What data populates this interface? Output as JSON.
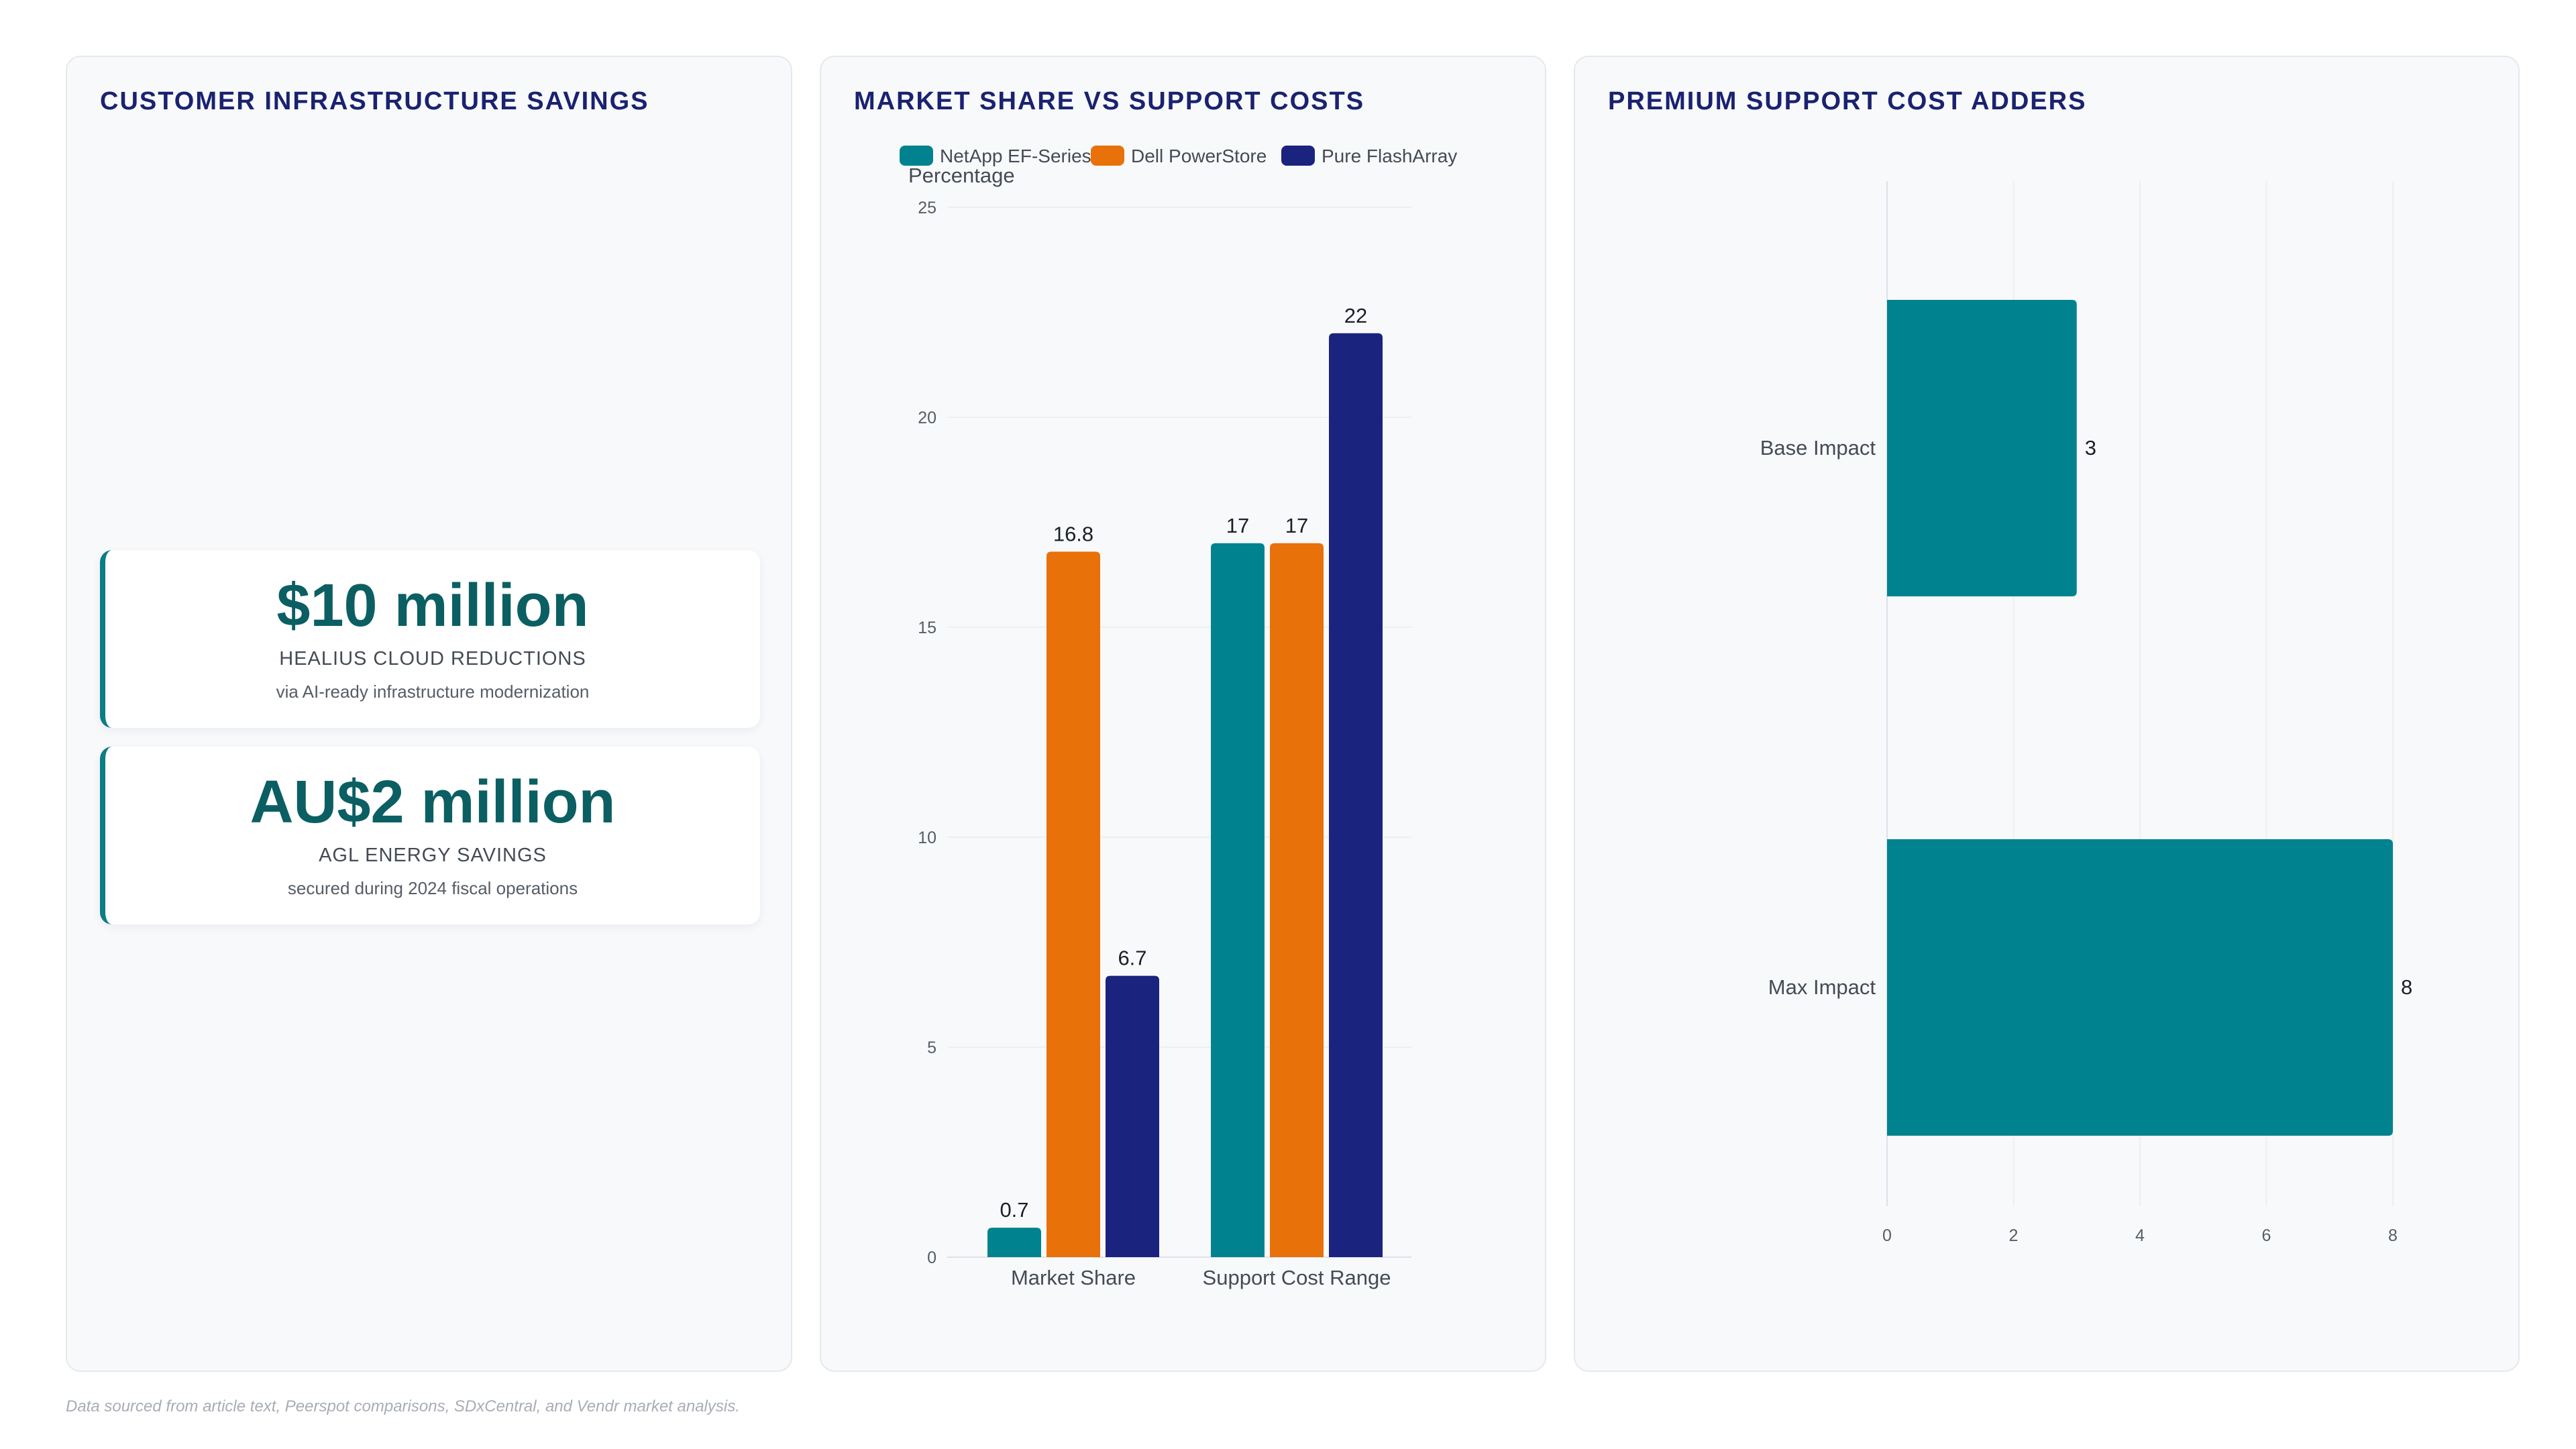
{
  "panels": {
    "savings": {
      "title": "CUSTOMER INFRASTRUCTURE SAVINGS",
      "cards": [
        {
          "value": "$10 million",
          "label": "HEALIUS CLOUD REDUCTIONS",
          "note": "via AI-ready infrastructure modernization"
        },
        {
          "value": "AU$2 million",
          "label": "AGL ENERGY SAVINGS",
          "note": "secured during 2024 fiscal operations"
        }
      ]
    },
    "market": {
      "title": "MARKET SHARE VS SUPPORT COSTS"
    },
    "adders": {
      "title": "PREMIUM SUPPORT COST ADDERS"
    }
  },
  "colors": {
    "teal": "#00838f",
    "orange": "#e8710a",
    "navy": "#1a237e",
    "title": "#1a2270"
  },
  "chart_data": [
    {
      "type": "bar",
      "title": "MARKET SHARE VS SUPPORT COSTS",
      "ylabel": "Percentage",
      "ylim": [
        0,
        25
      ],
      "yticks": [
        0,
        5,
        10,
        15,
        20,
        25
      ],
      "legend": "top",
      "grid": true,
      "categories": [
        "Market Share",
        "Support Cost Range"
      ],
      "series": [
        {
          "name": "NetApp EF-Series",
          "color": "#00838f",
          "values": [
            0.7,
            17
          ]
        },
        {
          "name": "Dell PowerStore",
          "color": "#e8710a",
          "values": [
            16.8,
            17
          ]
        },
        {
          "name": "Pure FlashArray",
          "color": "#1a237e",
          "values": [
            6.7,
            22
          ]
        }
      ]
    },
    {
      "type": "bar",
      "orientation": "horizontal",
      "title": "PREMIUM SUPPORT COST ADDERS",
      "xlim": [
        0,
        8
      ],
      "xticks": [
        0,
        2,
        4,
        6,
        8
      ],
      "grid": true,
      "categories": [
        "Base Impact",
        "Max Impact"
      ],
      "values": [
        3,
        8
      ],
      "color": "#00838f"
    }
  ],
  "footer": {
    "note": "Data sourced from article text, Peerspot comparisons, SDxCentral, and Vendr market analysis."
  }
}
